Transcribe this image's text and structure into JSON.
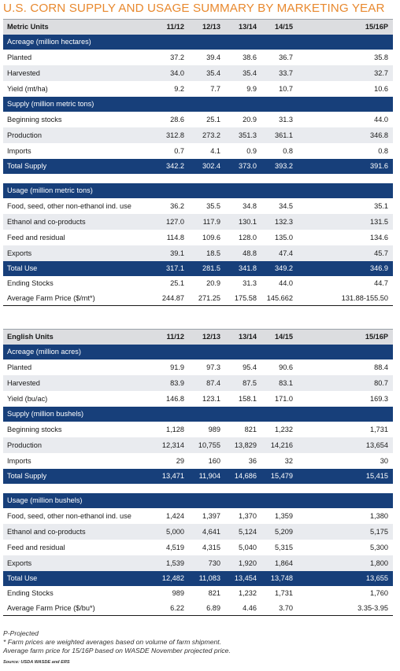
{
  "title": "U.S. CORN SUPPLY AND USAGE SUMMARY BY MARKETING YEAR",
  "metric": {
    "header": [
      "Metric Units",
      "11/12",
      "12/13",
      "13/14",
      "14/15",
      "15/16P"
    ],
    "acreage_label": "Acreage (million hectares)",
    "planted": [
      "Planted",
      "37.2",
      "39.4",
      "38.6",
      "36.7",
      "35.8"
    ],
    "harvested": [
      "Harvested",
      "34.0",
      "35.4",
      "35.4",
      "33.7",
      "32.7"
    ],
    "yield": [
      "Yield (mt/ha)",
      "9.2",
      "7.7",
      "9.9",
      "10.7",
      "10.6"
    ],
    "supply_label": "Supply (million metric tons)",
    "beginning": [
      "Beginning stocks",
      "28.6",
      "25.1",
      "20.9",
      "31.3",
      "44.0"
    ],
    "production": [
      "Production",
      "312.8",
      "273.2",
      "351.3",
      "361.1",
      "346.8"
    ],
    "imports": [
      "Imports",
      "0.7",
      "4.1",
      "0.9",
      "0.8",
      "0.8"
    ],
    "total_supply": [
      "Total Supply",
      "342.2",
      "302.4",
      "373.0",
      "393.2",
      "391.6"
    ],
    "usage_label": "Usage (million metric tons)",
    "food": [
      "Food, seed, other non-ethanol ind. use",
      "36.2",
      "35.5",
      "34.8",
      "34.5",
      "35.1"
    ],
    "ethanol": [
      "Ethanol and co-products",
      "127.0",
      "117.9",
      "130.1",
      "132.3",
      "131.5"
    ],
    "feed": [
      "Feed and residual",
      "114.8",
      "109.6",
      "128.0",
      "135.0",
      "134.6"
    ],
    "exports": [
      "Exports",
      "39.1",
      "18.5",
      "48.8",
      "47.4",
      "45.7"
    ],
    "total_use": [
      "Total Use",
      "317.1",
      "281.5",
      "341.8",
      "349.2",
      "346.9"
    ],
    "ending": [
      "Ending Stocks",
      "25.1",
      "20.9",
      "31.3",
      "44.0",
      "44.7"
    ],
    "price": [
      "Average Farm Price ($/mt*)",
      "244.87",
      "271.25",
      "175.58",
      "145.662",
      "131.88-155.50"
    ]
  },
  "english": {
    "header": [
      "English Units",
      "11/12",
      "12/13",
      "13/14",
      "14/15",
      "15/16P"
    ],
    "acreage_label": "Acreage (million acres)",
    "planted": [
      "Planted",
      "91.9",
      "97.3",
      "95.4",
      "90.6",
      "88.4"
    ],
    "harvested": [
      "Harvested",
      "83.9",
      "87.4",
      "87.5",
      "83.1",
      "80.7"
    ],
    "yield": [
      "Yield (bu/ac)",
      "146.8",
      "123.1",
      "158.1",
      "171.0",
      "169.3"
    ],
    "supply_label": "Supply (million bushels)",
    "beginning": [
      "Beginning stocks",
      "1,128",
      "989",
      "821",
      "1,232",
      "1,731"
    ],
    "production": [
      "Production",
      "12,314",
      "10,755",
      "13,829",
      "14,216",
      "13,654"
    ],
    "imports": [
      "Imports",
      "29",
      "160",
      "36",
      "32",
      "30"
    ],
    "total_supply": [
      "Total Supply",
      "13,471",
      "11,904",
      "14,686",
      "15,479",
      "15,415"
    ],
    "usage_label": "Usage (million bushels)",
    "food": [
      "Food, seed, other non-ethanol ind. use",
      "1,424",
      "1,397",
      "1,370",
      "1,359",
      "1,380"
    ],
    "ethanol": [
      "Ethanol and co-products",
      "5,000",
      "4,641",
      "5,124",
      "5,209",
      "5,175"
    ],
    "feed": [
      "Feed and residual",
      "4,519",
      "4,315",
      "5,040",
      "5,315",
      "5,300"
    ],
    "exports": [
      "Exports",
      "1,539",
      "730",
      "1,920",
      "1,864",
      "1,800"
    ],
    "total_use": [
      "Total Use",
      "12,482",
      "11,083",
      "13,454",
      "13,748",
      "13,655"
    ],
    "ending": [
      "Ending Stocks",
      "989",
      "821",
      "1,232",
      "1,731",
      "1,760"
    ],
    "price": [
      "Average Farm Price ($/bu*)",
      "6.22",
      "6.89",
      "4.46",
      "3.70",
      "3.35-3.95"
    ]
  },
  "notes": {
    "projected": "P-Projected",
    "farm_prices": "* Farm prices are weighted averages based on volume of farm shipment.",
    "avg_price": "Average farm price for 15/16P based on WASDE November projected price.",
    "source": "Source: USDA WASDE and ERS"
  },
  "colors": {
    "title": "#e8892f",
    "section_band": "#173f7a",
    "header_band": "#dcdde0",
    "stripe": "#e9ebef"
  }
}
